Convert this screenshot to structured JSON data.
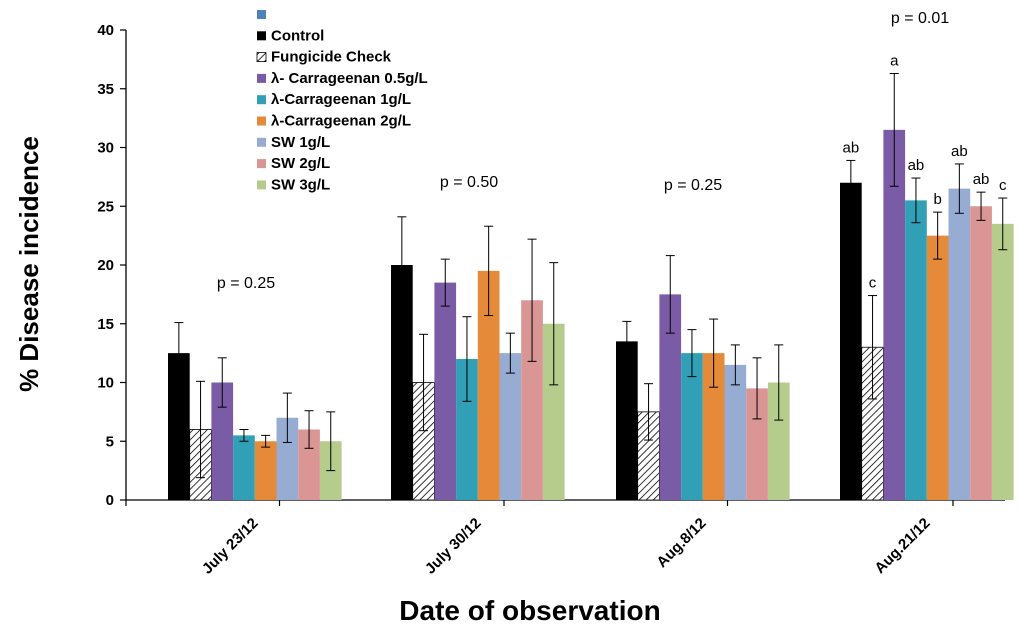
{
  "chart_data": {
    "type": "bar",
    "title": "",
    "xlabel": "Date of observation",
    "ylabel": "% Disease incidence",
    "ylim": [
      0,
      40
    ],
    "yticks": [
      "0",
      "5",
      "10",
      "15",
      "20",
      "25",
      "30",
      "35",
      "40"
    ],
    "grid": false,
    "legend_position": "top-center",
    "categories": [
      "July 23/12",
      "July 30/12",
      "Aug.8/12",
      "Aug.21/12"
    ],
    "p_values": [
      "p = 0.25",
      "p = 0.50",
      "p = 0.25",
      "p = 0.01"
    ],
    "legend_extra_swatch": {
      "name": "",
      "color": "#4f81bd"
    },
    "series": [
      {
        "name": "Control",
        "color": "#000000",
        "pattern": "solid",
        "values": [
          12.5,
          20,
          13.5,
          27
        ],
        "errors": [
          2.6,
          4.1,
          1.7,
          1.9
        ],
        "letters": [
          "",
          "",
          "",
          "ab"
        ]
      },
      {
        "name": "Fungicide Check",
        "color": "#ffffff",
        "pattern": "hatch",
        "values": [
          6,
          10,
          7.5,
          13
        ],
        "errors": [
          4.1,
          4.1,
          2.4,
          4.4
        ],
        "letters": [
          "",
          "",
          "",
          "c"
        ]
      },
      {
        "name": "λ- Carrageenan 0.5g/L",
        "color": "#7a5ba6",
        "pattern": "solid",
        "values": [
          10,
          18.5,
          17.5,
          31.5
        ],
        "errors": [
          2.1,
          2.0,
          3.3,
          4.8
        ],
        "letters": [
          "",
          "",
          "",
          "a"
        ]
      },
      {
        "name": "λ-Carrageenan 1g/L",
        "color": "#31a0b6",
        "pattern": "solid",
        "values": [
          5.5,
          12,
          12.5,
          25.5
        ],
        "errors": [
          0.5,
          3.6,
          2.0,
          1.9
        ],
        "letters": [
          "",
          "",
          "",
          "ab"
        ]
      },
      {
        "name": "λ-Carrageenan 2g/L",
        "color": "#e58a38",
        "pattern": "solid",
        "values": [
          5,
          19.5,
          12.5,
          22.5
        ],
        "errors": [
          0.5,
          3.8,
          2.9,
          2.0
        ],
        "letters": [
          "",
          "",
          "",
          "b"
        ]
      },
      {
        "name": "SW 1g/L",
        "color": "#97acd2",
        "pattern": "solid",
        "values": [
          7,
          12.5,
          11.5,
          26.5
        ],
        "errors": [
          2.1,
          1.7,
          1.7,
          2.1
        ],
        "letters": [
          "",
          "",
          "",
          "ab"
        ]
      },
      {
        "name": "SW 2g/L",
        "color": "#d99694",
        "pattern": "solid",
        "values": [
          6,
          17,
          9.5,
          25
        ],
        "errors": [
          1.6,
          5.2,
          2.6,
          1.2
        ],
        "letters": [
          "",
          "",
          "",
          "ab"
        ]
      },
      {
        "name": "SW 3g/L",
        "color": "#b6cc8c",
        "pattern": "solid",
        "values": [
          5,
          15,
          10,
          23.5
        ],
        "errors": [
          2.5,
          5.2,
          3.2,
          2.2
        ],
        "letters": [
          "",
          "",
          "",
          "c"
        ]
      }
    ]
  }
}
